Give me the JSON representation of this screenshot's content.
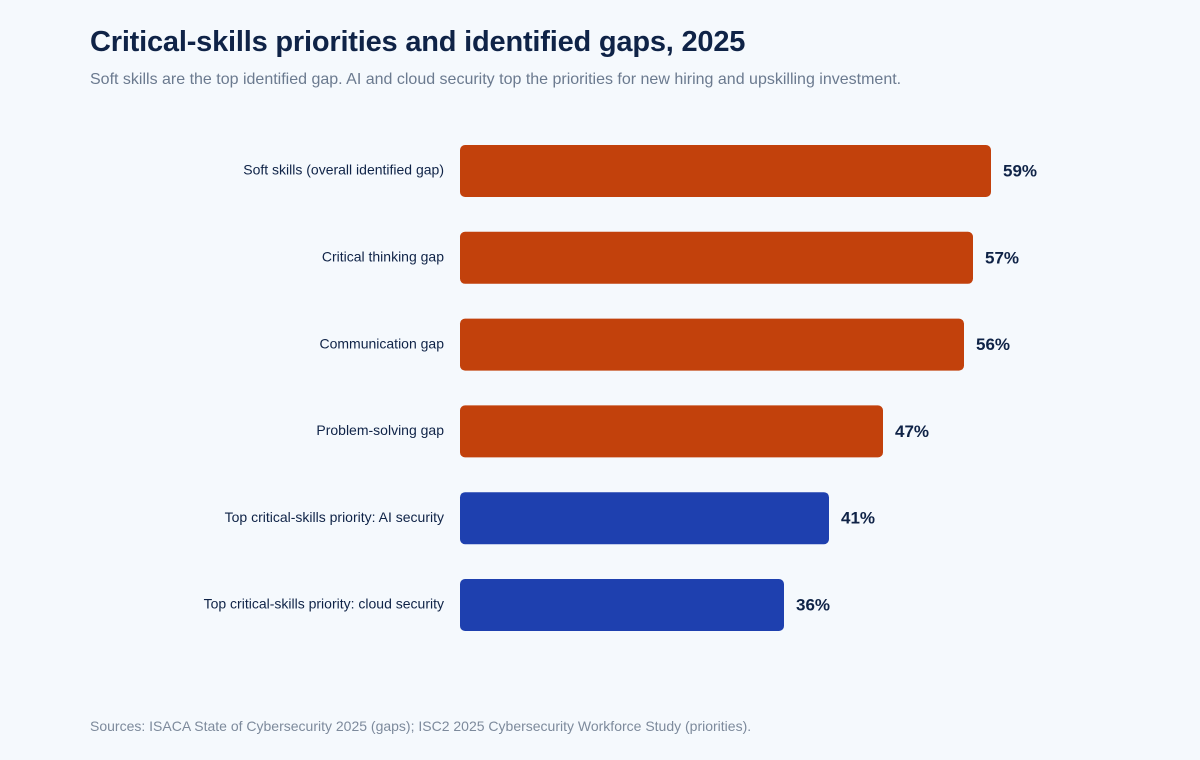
{
  "header": {
    "title": "Critical-skills priorities and identified gaps, 2025",
    "subtitle": "Soft skills are the top identified gap. AI and cloud security top the priorities for new hiring and upskilling investment."
  },
  "footer": {
    "sources": "Sources: ISACA State of Cybersecurity 2025 (gaps); ISC2 2025 Cybersecurity Workforce Study (priorities)."
  },
  "colors": {
    "gap": "#c2410c",
    "priority": "#1e40af",
    "text": "#0f2347"
  },
  "chart_data": {
    "type": "bar",
    "orientation": "horizontal",
    "title": "Critical-skills priorities and identified gaps, 2025",
    "categories": [
      "Soft skills (overall identified gap)",
      "Critical thinking gap",
      "Communication gap",
      "Problem-solving gap",
      "Top critical-skills priority: AI security",
      "Top critical-skills priority: cloud security"
    ],
    "values": [
      59,
      57,
      56,
      47,
      41,
      36
    ],
    "value_labels": [
      "59%",
      "57%",
      "56%",
      "47%",
      "41%",
      "36%"
    ],
    "groups": [
      "gap",
      "gap",
      "gap",
      "gap",
      "priority",
      "priority"
    ],
    "xlim": [
      0,
      100
    ],
    "unit": "%",
    "grid": false,
    "xlabel": "",
    "ylabel": ""
  }
}
